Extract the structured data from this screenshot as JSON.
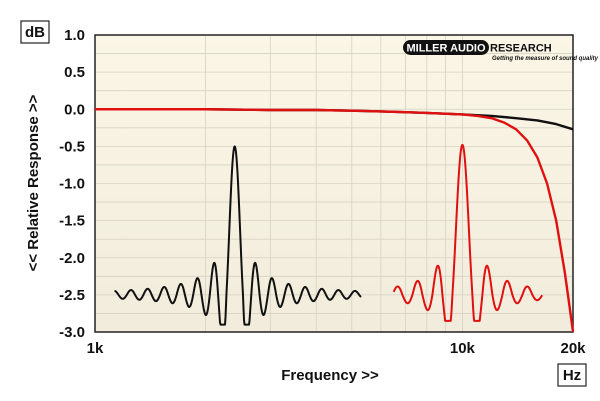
{
  "chart_data": {
    "type": "line",
    "brand": "MILLER AUDIO RESEARCH",
    "tagline": "Getting the measure of sound quality",
    "ylabel": "<< Relative Response >>",
    "xlabel": "Frequency >>",
    "y_unit": "dB",
    "x_unit": "Hz",
    "x_scale": "log",
    "xlim": [
      1000,
      20000
    ],
    "ylim": [
      -3.0,
      1.0
    ],
    "grid": true,
    "x_ticks": [
      {
        "value": 1000,
        "label": "1k"
      },
      {
        "value": 10000,
        "label": "10k"
      },
      {
        "value": 20000,
        "label": "20k"
      }
    ],
    "y_ticks": [
      {
        "value": 1.0,
        "label": "1.0"
      },
      {
        "value": 0.5,
        "label": "0.5"
      },
      {
        "value": 0.0,
        "label": "0.0"
      },
      {
        "value": -0.5,
        "label": "-0.5"
      },
      {
        "value": -1.0,
        "label": "-1.0"
      },
      {
        "value": -1.5,
        "label": "-1.5"
      },
      {
        "value": -2.0,
        "label": "-2.0"
      },
      {
        "value": -2.5,
        "label": "-2.5"
      },
      {
        "value": -3.0,
        "label": "-3.0"
      }
    ],
    "series": [
      {
        "color": "#111111",
        "points": [
          [
            1000,
            0.0
          ],
          [
            2000,
            0.0
          ],
          [
            3000,
            -0.01
          ],
          [
            4000,
            -0.01
          ],
          [
            5000,
            -0.02
          ],
          [
            6000,
            -0.03
          ],
          [
            7000,
            -0.04
          ],
          [
            8000,
            -0.05
          ],
          [
            10000,
            -0.07
          ],
          [
            12000,
            -0.09
          ],
          [
            14000,
            -0.12
          ],
          [
            16000,
            -0.15
          ],
          [
            18000,
            -0.2
          ],
          [
            20000,
            -0.27
          ]
        ]
      },
      {
        "color": "#e01010",
        "points": [
          [
            1000,
            0.0
          ],
          [
            2000,
            0.0
          ],
          [
            3000,
            -0.01
          ],
          [
            4000,
            -0.01
          ],
          [
            5000,
            -0.02
          ],
          [
            6000,
            -0.03
          ],
          [
            7000,
            -0.04
          ],
          [
            8000,
            -0.05
          ],
          [
            10000,
            -0.07
          ],
          [
            11000,
            -0.09
          ],
          [
            12000,
            -0.12
          ],
          [
            13000,
            -0.18
          ],
          [
            14000,
            -0.27
          ],
          [
            15000,
            -0.42
          ],
          [
            16000,
            -0.65
          ],
          [
            17000,
            -1.0
          ],
          [
            18000,
            -1.5
          ],
          [
            19000,
            -2.2
          ],
          [
            19500,
            -2.6
          ],
          [
            20000,
            -3.0
          ]
        ]
      }
    ],
    "impulse_insets": [
      {
        "color": "#111111",
        "x_range": [
          1130,
          5300
        ],
        "baseline": -2.5,
        "peak_at": 2400,
        "peak_value": -0.5,
        "min_value": -2.9
      },
      {
        "color": "#e01010",
        "x_range": [
          6500,
          16500
        ],
        "baseline": -2.5,
        "peak_at": 10000,
        "peak_value": -0.48,
        "min_value": -2.85
      }
    ]
  }
}
